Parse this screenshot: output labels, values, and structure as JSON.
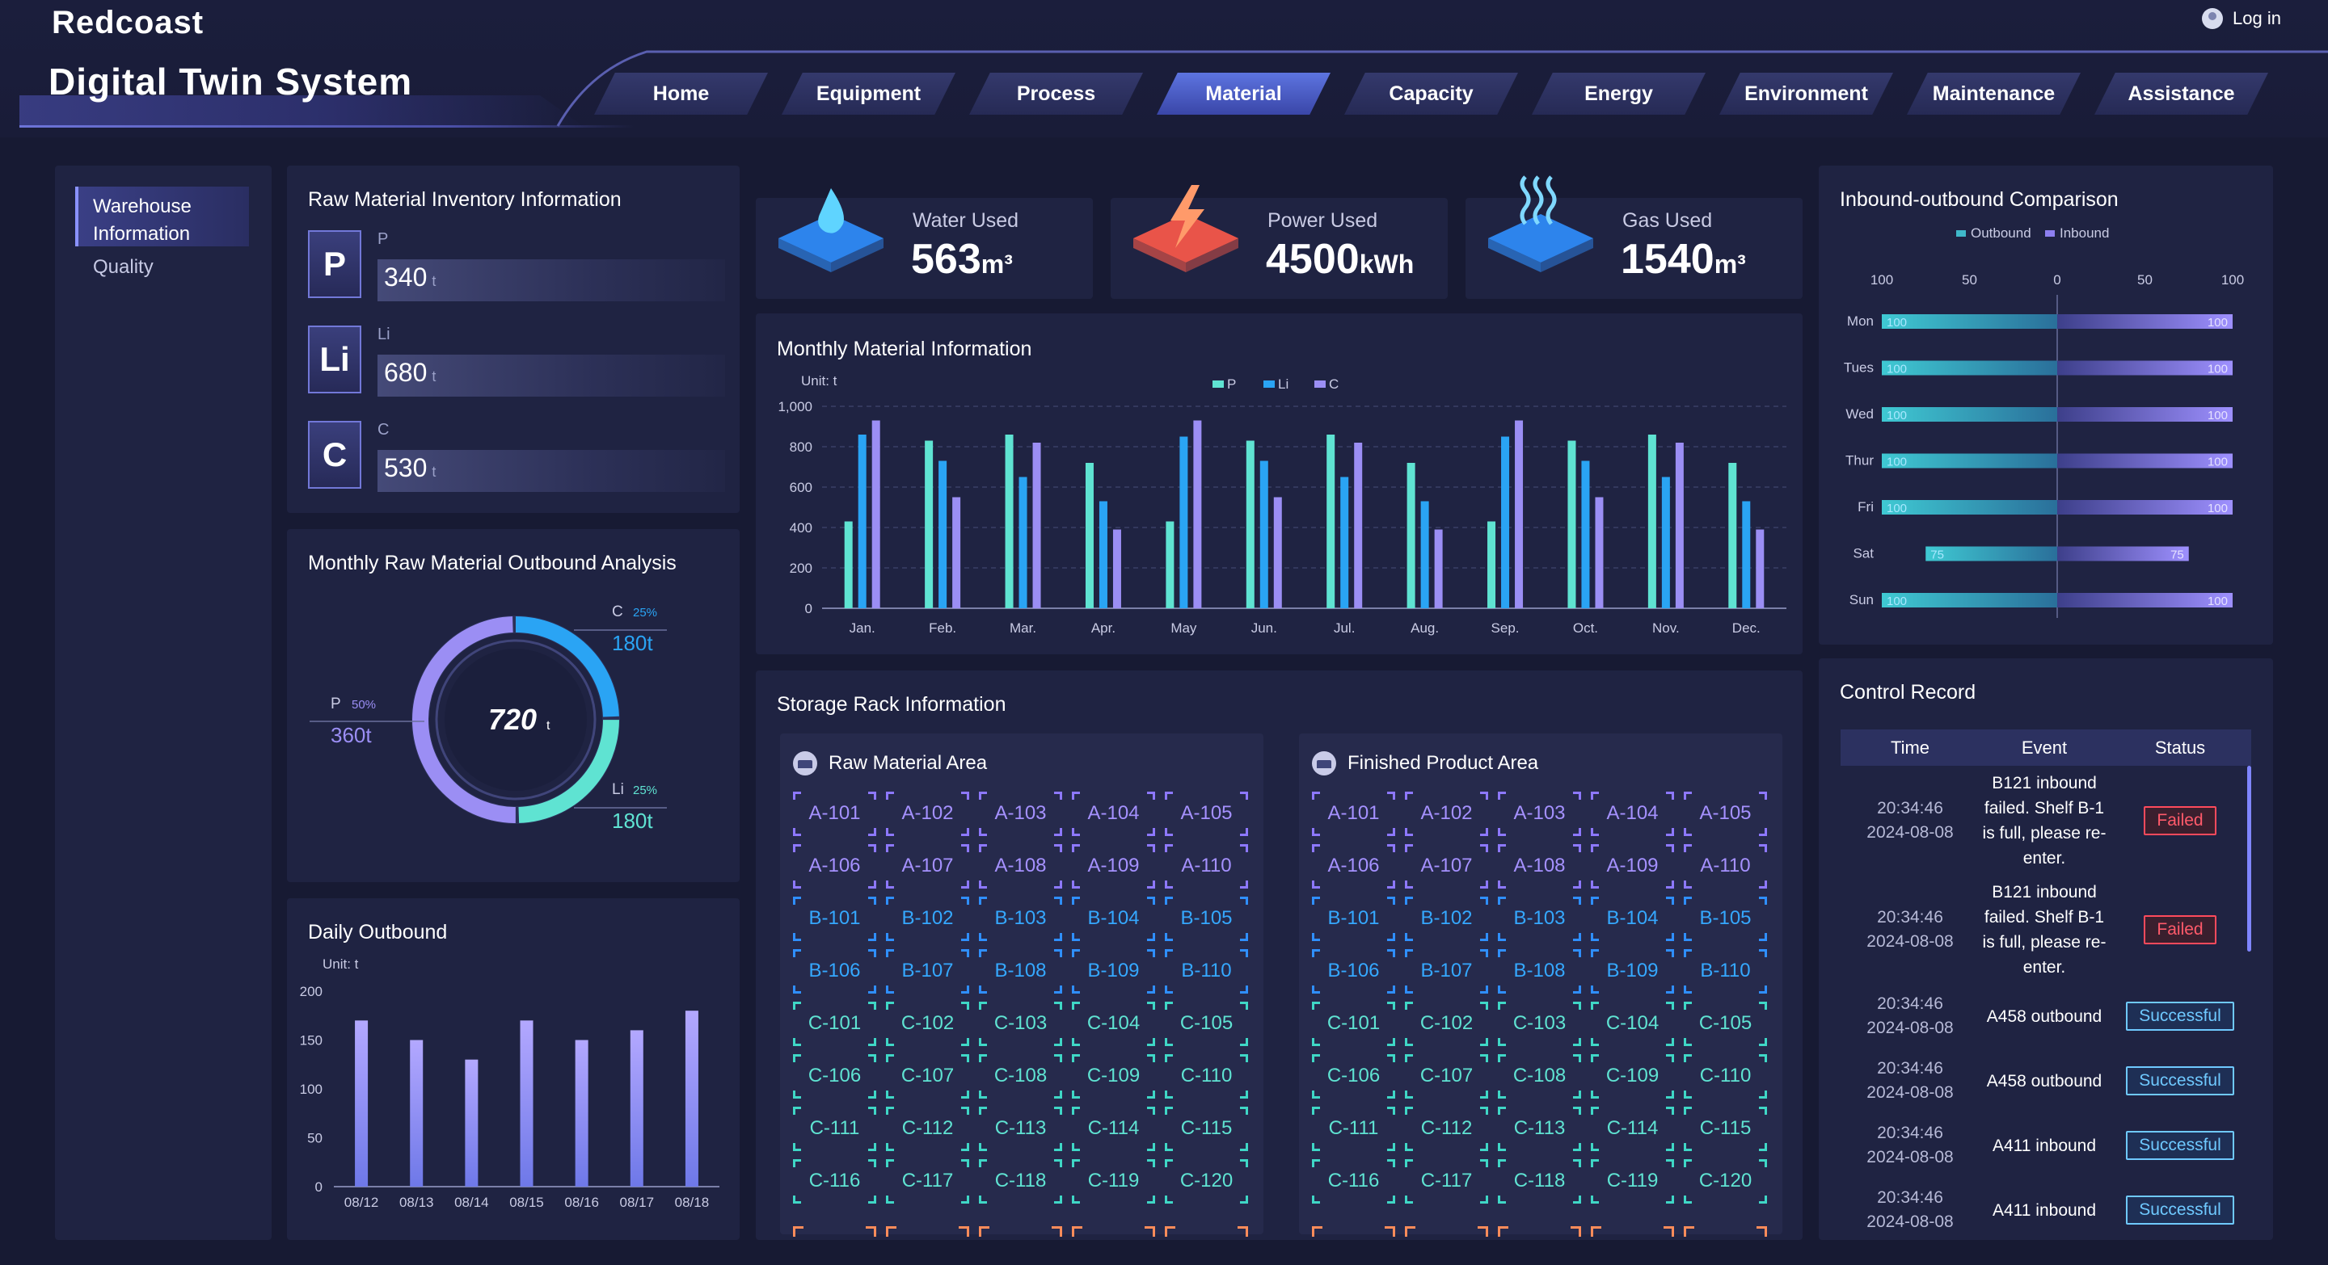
{
  "app": {
    "brand": "Redcoast",
    "title": "Digital Twin System",
    "login_label": "Log in"
  },
  "nav": {
    "tabs": [
      {
        "label": "Home",
        "active": false
      },
      {
        "label": "Equipment",
        "active": false
      },
      {
        "label": "Process",
        "active": false
      },
      {
        "label": "Material",
        "active": true
      },
      {
        "label": "Capacity",
        "active": false
      },
      {
        "label": "Energy",
        "active": false
      },
      {
        "label": "Environment",
        "active": false
      },
      {
        "label": "Maintenance",
        "active": false
      },
      {
        "label": "Assistance",
        "active": false
      }
    ]
  },
  "sidebar": {
    "items": [
      {
        "label": "Warehouse Information",
        "active": true
      },
      {
        "label": "Quality",
        "active": false
      }
    ]
  },
  "inventory": {
    "title": "Raw Material Inventory Information",
    "items": [
      {
        "symbol": "P",
        "name": "P",
        "value": "340",
        "unit": "t"
      },
      {
        "symbol": "Li",
        "name": "Li",
        "value": "680",
        "unit": "t"
      },
      {
        "symbol": "C",
        "name": "C",
        "value": "530",
        "unit": "t"
      }
    ]
  },
  "stats": [
    {
      "label": "Water Used",
      "value": "563",
      "unit": "m³",
      "icon": "water-drop-icon"
    },
    {
      "label": "Power Used",
      "value": "4500",
      "unit": "kWh",
      "icon": "lightning-icon"
    },
    {
      "label": "Gas Used",
      "value": "1540",
      "unit": "m³",
      "icon": "gas-steam-icon"
    }
  ],
  "monthly_material": {
    "title": "Monthly Material Information",
    "unit": "Unit: t",
    "colors": {
      "P": "#5fe3d2",
      "Li": "#2aa4f4",
      "C": "#9b8ef4"
    },
    "chart_data": {
      "type": "bar",
      "categories": [
        "Jan.",
        "Feb.",
        "Mar.",
        "Apr.",
        "May",
        "Jun.",
        "Jul.",
        "Aug.",
        "Sep.",
        "Oct.",
        "Nov.",
        "Dec."
      ],
      "series": [
        {
          "name": "P",
          "values": [
            430,
            830,
            860,
            720,
            430,
            830,
            860,
            720,
            430,
            830,
            860,
            720
          ]
        },
        {
          "name": "Li",
          "values": [
            860,
            730,
            650,
            530,
            850,
            730,
            650,
            530,
            850,
            730,
            650,
            530
          ]
        },
        {
          "name": "C",
          "values": [
            930,
            550,
            820,
            390,
            930,
            550,
            820,
            390,
            930,
            550,
            820,
            390
          ]
        }
      ],
      "yticks": [
        "0",
        "200",
        "400",
        "600",
        "800",
        "1,000"
      ],
      "ylim": [
        0,
        1000
      ],
      "legend": "top-center"
    }
  },
  "outbound_analysis": {
    "title": "Monthly Raw Material Outbound Analysis",
    "total": "720",
    "total_unit": "t",
    "chart_data": {
      "type": "pie",
      "slices": [
        {
          "name": "C",
          "pct": "25%",
          "value": "180t",
          "fraction": 0.25,
          "color": "#2aa4f4"
        },
        {
          "name": "Li",
          "pct": "25%",
          "value": "180t",
          "fraction": 0.25,
          "color": "#5fe3d2"
        },
        {
          "name": "P",
          "pct": "50%",
          "value": "360t",
          "fraction": 0.5,
          "color": "#9b8ef4"
        }
      ]
    }
  },
  "daily_outbound": {
    "title": "Daily Outbound",
    "unit": "Unit: t",
    "chart_data": {
      "type": "bar",
      "categories": [
        "08/12",
        "08/13",
        "08/14",
        "08/15",
        "08/16",
        "08/17",
        "08/18"
      ],
      "values": [
        170,
        150,
        130,
        170,
        150,
        160,
        180
      ],
      "yticks": [
        "0",
        "50",
        "100",
        "150",
        "200"
      ],
      "ylim": [
        0,
        200
      ]
    }
  },
  "inout": {
    "title": "Inbound-outbound Comparison",
    "legend": [
      "Outbound",
      "Inbound"
    ],
    "colors": {
      "Outbound": "#3fb8c9",
      "Inbound": "#8d7ff0"
    },
    "chart_data": {
      "type": "bar",
      "orientation": "horizontal-diverging",
      "categories": [
        "Mon",
        "Tues",
        "Wed",
        "Thur",
        "Fri",
        "Sat",
        "Sun"
      ],
      "series": [
        {
          "name": "Outbound",
          "values": [
            100,
            100,
            100,
            100,
            100,
            75,
            100
          ]
        },
        {
          "name": "Inbound",
          "values": [
            100,
            100,
            100,
            100,
            100,
            75,
            100
          ]
        }
      ],
      "xticks": [
        "100",
        "50",
        "0",
        "50",
        "100"
      ],
      "xlim": [
        -100,
        100
      ]
    }
  },
  "storage": {
    "title": "Storage Rack Information",
    "areas": [
      {
        "title": "Raw Material Area",
        "racks": [
          "A-101",
          "A-102",
          "A-103",
          "A-104",
          "A-105",
          "A-106",
          "A-107",
          "A-108",
          "A-109",
          "A-110",
          "B-101",
          "B-102",
          "B-103",
          "B-104",
          "B-105",
          "B-106",
          "B-107",
          "B-108",
          "B-109",
          "B-110",
          "C-101",
          "C-102",
          "C-103",
          "C-104",
          "C-105",
          "C-106",
          "C-107",
          "C-108",
          "C-109",
          "C-110",
          "C-111",
          "C-112",
          "C-113",
          "C-114",
          "C-115",
          "C-116",
          "C-117",
          "C-118",
          "C-119",
          "C-120"
        ]
      },
      {
        "title": "Finished Product Area",
        "racks": [
          "A-101",
          "A-102",
          "A-103",
          "A-104",
          "A-105",
          "A-106",
          "A-107",
          "A-108",
          "A-109",
          "A-110",
          "B-101",
          "B-102",
          "B-103",
          "B-104",
          "B-105",
          "B-106",
          "B-107",
          "B-108",
          "B-109",
          "B-110",
          "C-101",
          "C-102",
          "C-103",
          "C-104",
          "C-105",
          "C-106",
          "C-107",
          "C-108",
          "C-109",
          "C-110",
          "C-111",
          "C-112",
          "C-113",
          "C-114",
          "C-115",
          "C-116",
          "C-117",
          "C-118",
          "C-119",
          "C-120"
        ]
      }
    ]
  },
  "control": {
    "title": "Control Record",
    "headers": [
      "Time",
      "Event",
      "Status"
    ],
    "rows": [
      {
        "time": "20:34:46",
        "date": "2024-08-08",
        "event": "B121 inbound failed. Shelf B-1 is full, please re-enter.",
        "status": "Failed",
        "ok": false
      },
      {
        "time": "20:34:46",
        "date": "2024-08-08",
        "event": "B121 inbound failed. Shelf B-1 is full, please re-enter.",
        "status": "Failed",
        "ok": false
      },
      {
        "time": "20:34:46",
        "date": "2024-08-08",
        "event": "A458 outbound",
        "status": "Successful",
        "ok": true
      },
      {
        "time": "20:34:46",
        "date": "2024-08-08",
        "event": "A458 outbound",
        "status": "Successful",
        "ok": true
      },
      {
        "time": "20:34:46",
        "date": "2024-08-08",
        "event": "A411 inbound",
        "status": "Successful",
        "ok": true
      },
      {
        "time": "20:34:46",
        "date": "2024-08-08",
        "event": "A411 inbound",
        "status": "Successful",
        "ok": true
      }
    ]
  }
}
